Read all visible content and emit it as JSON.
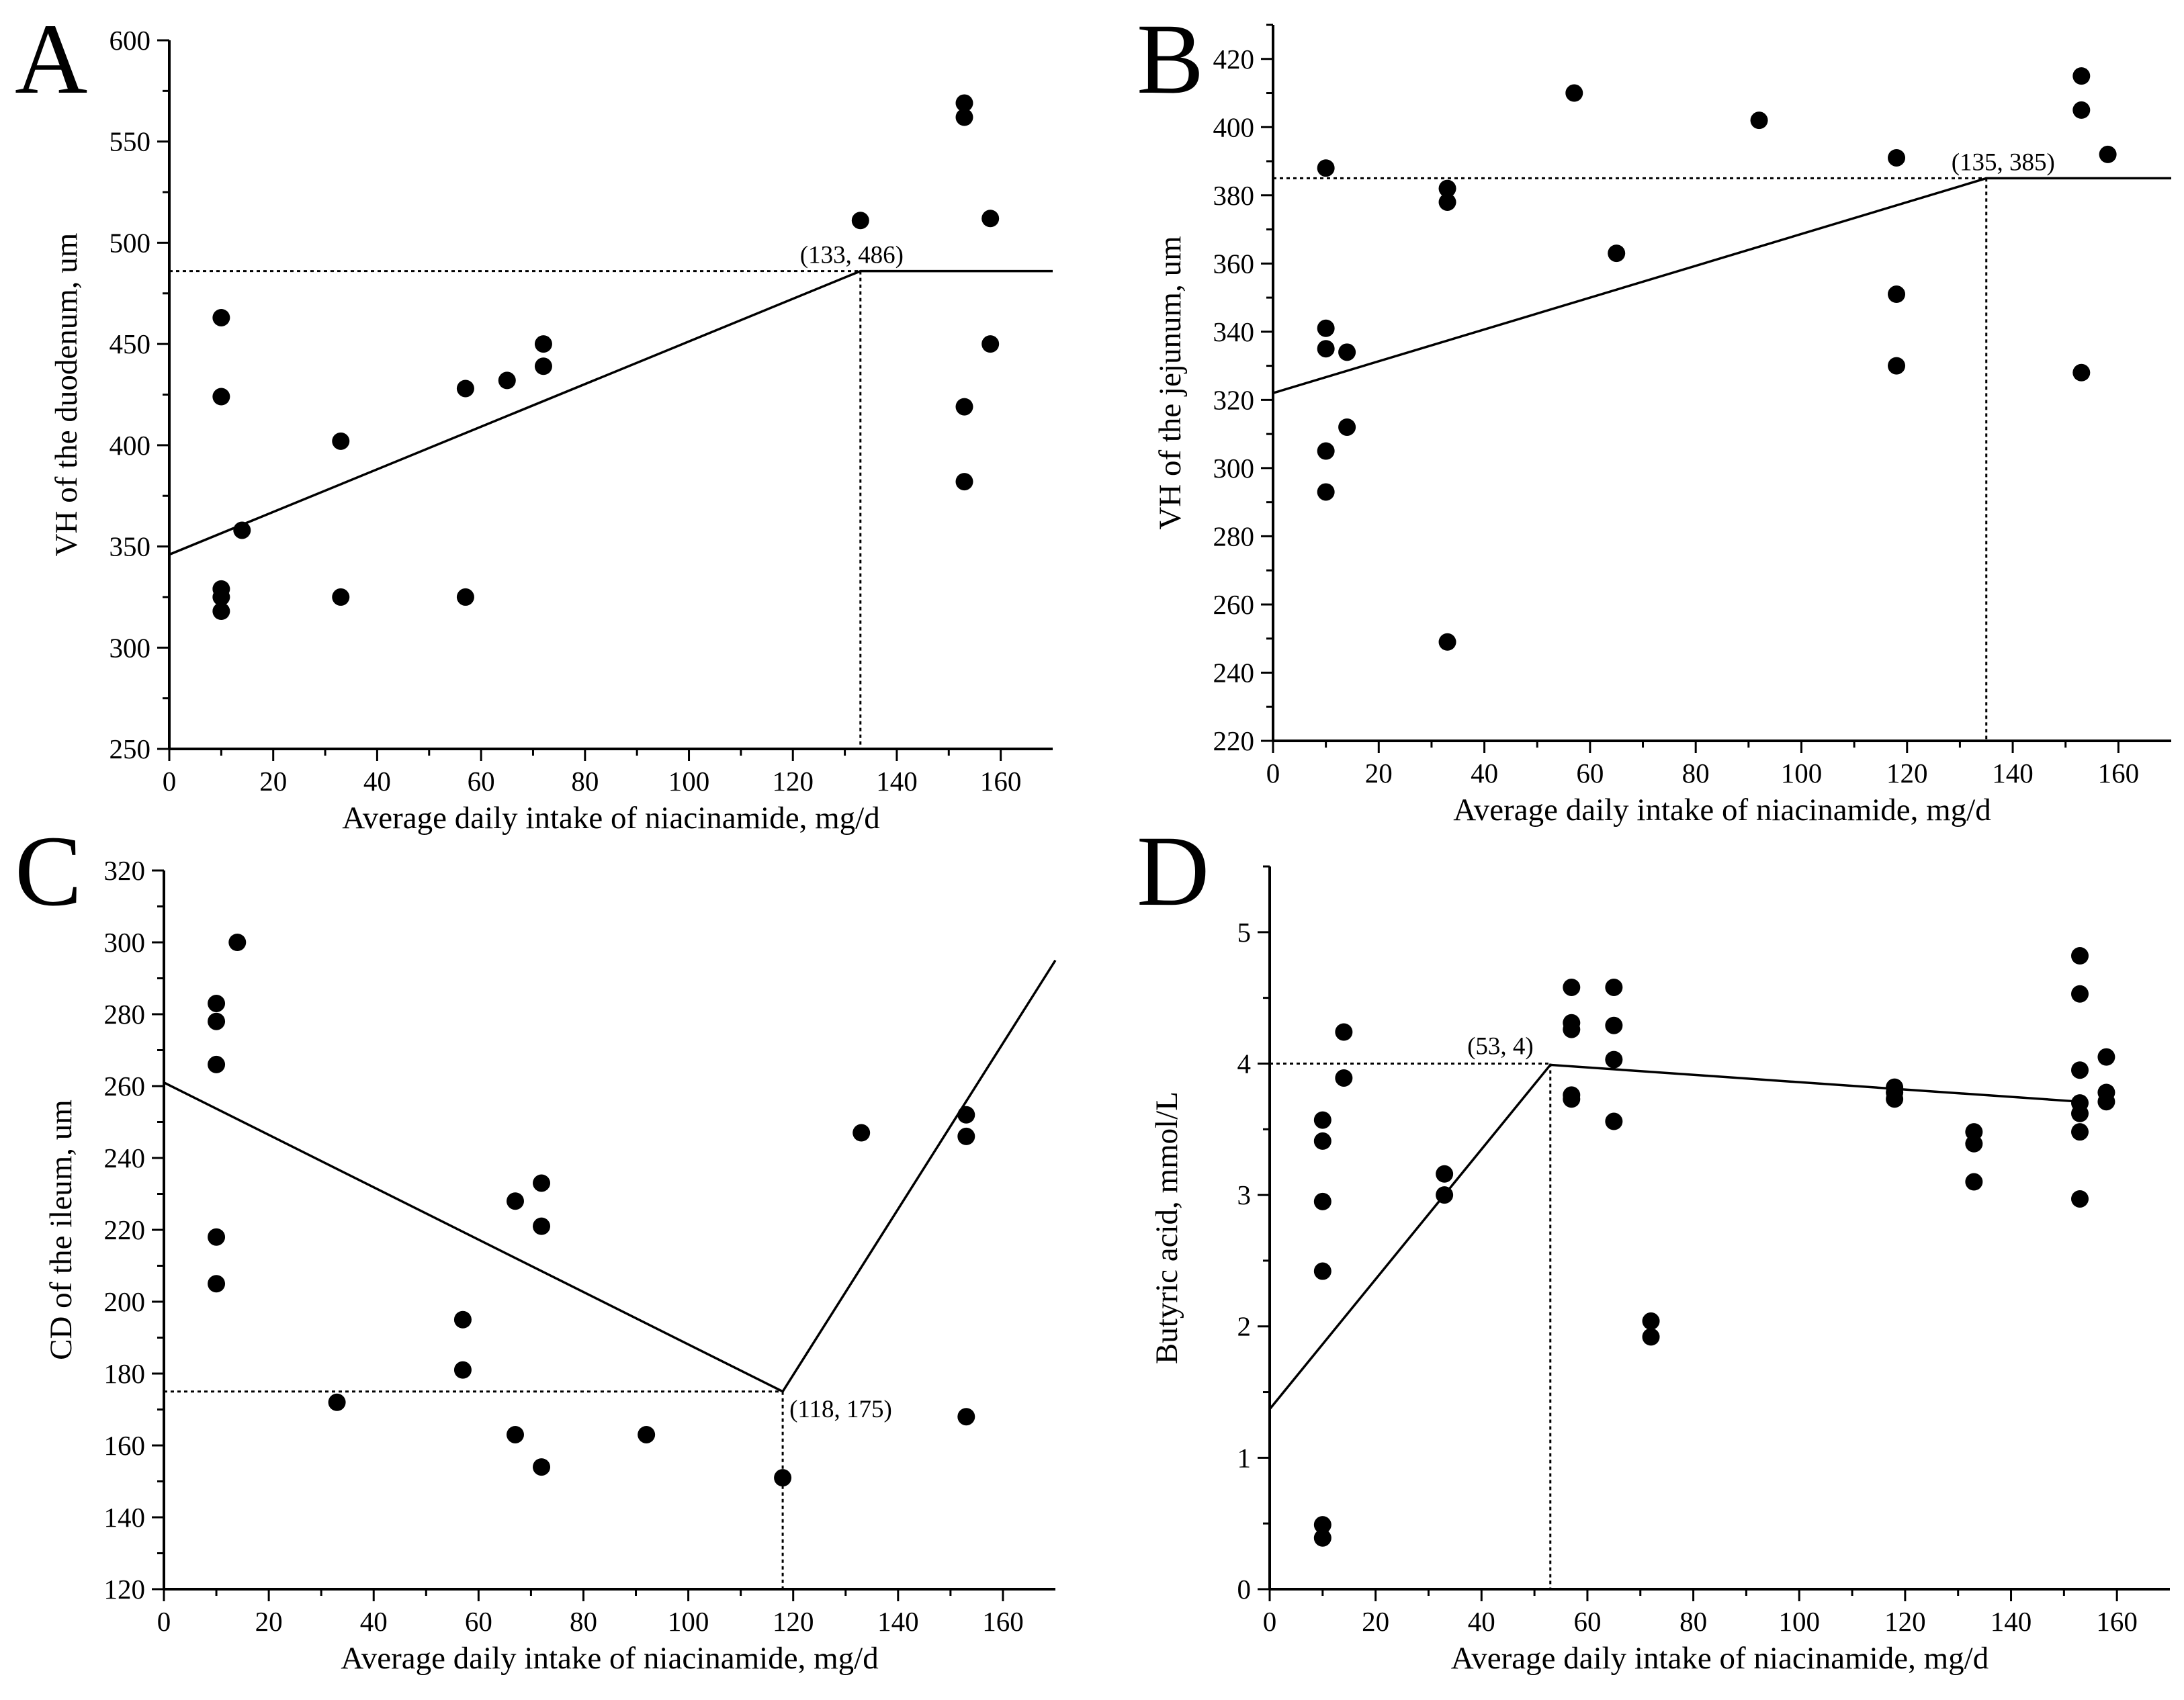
{
  "figure": {
    "panels": [
      "A",
      "B",
      "C",
      "D"
    ]
  },
  "chart_data": [
    {
      "type": "scatter",
      "panel": "A",
      "title": "",
      "xlabel": "Average daily intake of niacinamide, mg/d",
      "ylabel": "VH of the duodenum, um",
      "xlim": [
        0,
        170
      ],
      "ylim": [
        250,
        600
      ],
      "xticks": [
        0,
        20,
        40,
        60,
        80,
        100,
        120,
        140,
        160
      ],
      "yticks": [
        250,
        300,
        350,
        400,
        450,
        500,
        550,
        600
      ],
      "points": [
        [
          10,
          463
        ],
        [
          10,
          424
        ],
        [
          10,
          329
        ],
        [
          10,
          325
        ],
        [
          10,
          318
        ],
        [
          14,
          358
        ],
        [
          33,
          402
        ],
        [
          33,
          325
        ],
        [
          57,
          428
        ],
        [
          57,
          325
        ],
        [
          65,
          432
        ],
        [
          72,
          450
        ],
        [
          72,
          439
        ],
        [
          133,
          511
        ],
        [
          153,
          569
        ],
        [
          153,
          562
        ],
        [
          153,
          419
        ],
        [
          153,
          382
        ],
        [
          158,
          512
        ],
        [
          158,
          450
        ]
      ],
      "fit": [
        [
          0,
          346
        ],
        [
          133,
          486
        ],
        [
          170,
          486
        ]
      ],
      "breakpoint": [
        133,
        486
      ],
      "breakpoint_label": "(133, 486)"
    },
    {
      "type": "scatter",
      "panel": "B",
      "title": "",
      "xlabel": "Average daily intake of niacinamide, mg/d",
      "ylabel": "VH of the jejunum, um",
      "xlim": [
        0,
        170
      ],
      "ylim": [
        220,
        430
      ],
      "xticks": [
        0,
        20,
        40,
        60,
        80,
        100,
        120,
        140,
        160
      ],
      "yticks": [
        220,
        240,
        260,
        280,
        300,
        320,
        340,
        360,
        380,
        400,
        420
      ],
      "points": [
        [
          10,
          388
        ],
        [
          10,
          341
        ],
        [
          10,
          335
        ],
        [
          10,
          305
        ],
        [
          10,
          293
        ],
        [
          14,
          334
        ],
        [
          14,
          312
        ],
        [
          33,
          382
        ],
        [
          33,
          378
        ],
        [
          33,
          249
        ],
        [
          57,
          410
        ],
        [
          65,
          363
        ],
        [
          92,
          402
        ],
        [
          118,
          391
        ],
        [
          118,
          351
        ],
        [
          118,
          330
        ],
        [
          153,
          415
        ],
        [
          153,
          405
        ],
        [
          153,
          328
        ],
        [
          158,
          392
        ]
      ],
      "fit": [
        [
          0,
          322
        ],
        [
          135,
          385
        ],
        [
          170,
          385
        ]
      ],
      "breakpoint": [
        135,
        385
      ],
      "breakpoint_label": "(135, 385)"
    },
    {
      "type": "scatter",
      "panel": "C",
      "title": "",
      "xlabel": "Average daily intake of niacinamide, mg/d",
      "ylabel": "CD of the ileum, um",
      "xlim": [
        0,
        170
      ],
      "ylim": [
        120,
        320
      ],
      "xticks": [
        0,
        20,
        40,
        60,
        80,
        100,
        120,
        140,
        160
      ],
      "yticks": [
        120,
        140,
        160,
        180,
        200,
        220,
        240,
        260,
        280,
        300,
        320
      ],
      "points": [
        [
          10,
          283
        ],
        [
          10,
          278
        ],
        [
          10,
          266
        ],
        [
          10,
          218
        ],
        [
          10,
          205
        ],
        [
          14,
          300
        ],
        [
          33,
          172
        ],
        [
          57,
          195
        ],
        [
          57,
          181
        ],
        [
          67,
          228
        ],
        [
          67,
          163
        ],
        [
          72,
          233
        ],
        [
          72,
          221
        ],
        [
          72,
          154
        ],
        [
          92,
          163
        ],
        [
          118,
          151
        ],
        [
          133,
          247
        ],
        [
          153,
          252
        ],
        [
          153,
          246
        ],
        [
          153,
          168
        ]
      ],
      "fit": [
        [
          0,
          261
        ],
        [
          118,
          175
        ],
        [
          170,
          295
        ]
      ],
      "breakpoint": [
        118,
        175
      ],
      "breakpoint_label": "(118, 175)"
    },
    {
      "type": "scatter",
      "panel": "D",
      "title": "",
      "xlabel": "Average daily intake of niacinamide, mg/d",
      "ylabel": "Butyric acid, mmol/L",
      "xlim": [
        0,
        170
      ],
      "ylim": [
        0,
        5.5
      ],
      "xticks": [
        0,
        20,
        40,
        60,
        80,
        100,
        120,
        140,
        160
      ],
      "yticks": [
        0,
        1,
        2,
        3,
        4,
        5
      ],
      "points": [
        [
          10,
          3.57
        ],
        [
          10,
          3.41
        ],
        [
          10,
          2.95
        ],
        [
          10,
          2.42
        ],
        [
          10,
          0.49
        ],
        [
          10,
          0.39
        ],
        [
          14,
          4.24
        ],
        [
          14,
          3.89
        ],
        [
          33,
          3.16
        ],
        [
          33,
          3.0
        ],
        [
          57,
          4.58
        ],
        [
          57,
          4.31
        ],
        [
          57,
          4.26
        ],
        [
          57,
          3.76
        ],
        [
          57,
          3.73
        ],
        [
          65,
          4.58
        ],
        [
          65,
          4.29
        ],
        [
          65,
          4.03
        ],
        [
          65,
          3.56
        ],
        [
          72,
          2.04
        ],
        [
          72,
          1.92
        ],
        [
          118,
          3.82
        ],
        [
          118,
          3.78
        ],
        [
          118,
          3.73
        ],
        [
          133,
          3.48
        ],
        [
          133,
          3.39
        ],
        [
          133,
          3.1
        ],
        [
          153,
          4.82
        ],
        [
          153,
          4.53
        ],
        [
          153,
          3.95
        ],
        [
          153,
          3.7
        ],
        [
          153,
          3.62
        ],
        [
          153,
          3.48
        ],
        [
          153,
          2.97
        ],
        [
          158,
          4.05
        ],
        [
          158,
          3.78
        ],
        [
          158,
          3.71
        ]
      ],
      "fit": [
        [
          0,
          1.37
        ],
        [
          53,
          3.99
        ],
        [
          153,
          3.71
        ]
      ],
      "breakpoint": [
        53,
        4.0
      ],
      "breakpoint_label": "(53, 4)"
    }
  ]
}
